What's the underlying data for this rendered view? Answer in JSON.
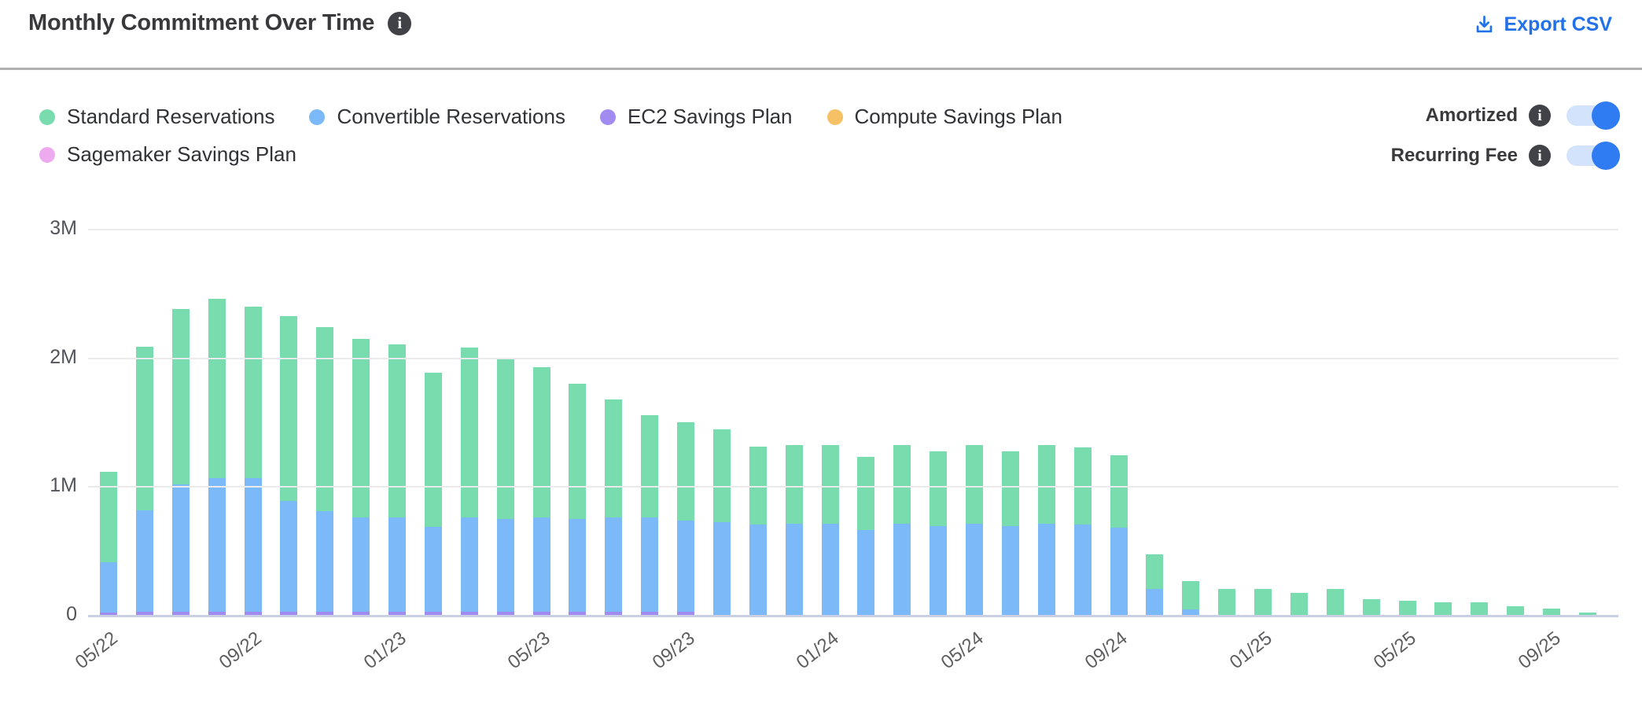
{
  "header": {
    "title": "Monthly Commitment Over Time",
    "title_info_icon": "info-icon",
    "export_label": "Export CSV"
  },
  "controls": {
    "amortized_label": "Amortized",
    "amortized_on": true,
    "recurring_fee_label": "Recurring Fee",
    "recurring_fee_on": true
  },
  "colors": {
    "accent_blue": "#2271e9",
    "toggle_track": "#d3e3fc",
    "toggle_knob": "#2e7bf2",
    "info_badge": "#414247",
    "gridline": "#eaeaea",
    "axis_line": "#c9cfe4",
    "standard": "#78dcae",
    "convertible": "#7cb9f8",
    "ec2_sp": "#a18bf0",
    "compute_sp": "#f6c065",
    "sagemaker_sp": "#eeaaee"
  },
  "chart_data": {
    "type": "bar",
    "stacked": true,
    "value_unit": "millions",
    "ylim": [
      0,
      3000000
    ],
    "y_ticks": [
      "3M",
      "2M",
      "1M",
      "0"
    ],
    "y_tick_values": [
      3000000,
      2000000,
      1000000,
      0
    ],
    "grid": true,
    "legend_position": "top-left",
    "x_tick_labels_shown": [
      "05/22",
      "09/22",
      "01/23",
      "05/23",
      "09/23",
      "01/24",
      "05/24",
      "09/24",
      "01/25",
      "05/25",
      "09/25"
    ],
    "x": [
      "05/22",
      "06/22",
      "07/22",
      "08/22",
      "09/22",
      "10/22",
      "11/22",
      "12/22",
      "01/23",
      "02/23",
      "03/23",
      "04/23",
      "05/23",
      "06/23",
      "07/23",
      "08/23",
      "09/23",
      "10/23",
      "11/23",
      "12/23",
      "01/24",
      "02/24",
      "03/24",
      "04/24",
      "05/24",
      "06/24",
      "07/24",
      "08/24",
      "09/24",
      "10/24",
      "11/24",
      "12/24",
      "01/25",
      "02/25",
      "03/25",
      "04/25",
      "05/25",
      "06/25",
      "07/25",
      "08/25",
      "09/25",
      "10/25"
    ],
    "stack_order_bottom_to_top": [
      "EC2 Savings Plan",
      "Convertible Reservations",
      "Standard Reservations"
    ],
    "series": [
      {
        "name": "Standard Reservations",
        "color": "#78dcae",
        "values": [
          0.7,
          1.27,
          1.36,
          1.39,
          1.33,
          1.44,
          1.43,
          1.39,
          1.35,
          1.2,
          1.32,
          1.25,
          1.17,
          1.05,
          0.92,
          0.8,
          0.76,
          0.72,
          0.61,
          0.61,
          0.61,
          0.57,
          0.61,
          0.58,
          0.61,
          0.58,
          0.61,
          0.6,
          0.56,
          0.27,
          0.22,
          0.2,
          0.2,
          0.17,
          0.2,
          0.12,
          0.11,
          0.1,
          0.1,
          0.07,
          0.05,
          0.02
        ]
      },
      {
        "name": "Convertible Reservations",
        "color": "#7cb9f8",
        "values": [
          0.39,
          0.79,
          0.99,
          1.04,
          1.04,
          0.86,
          0.78,
          0.73,
          0.73,
          0.66,
          0.73,
          0.72,
          0.73,
          0.72,
          0.73,
          0.73,
          0.71,
          0.72,
          0.7,
          0.71,
          0.71,
          0.66,
          0.71,
          0.69,
          0.71,
          0.69,
          0.71,
          0.7,
          0.68,
          0.2,
          0.04,
          0,
          0,
          0,
          0,
          0,
          0,
          0,
          0,
          0,
          0,
          0
        ]
      },
      {
        "name": "EC2 Savings Plan",
        "color": "#a18bf0",
        "values": [
          0.02,
          0.025,
          0.025,
          0.025,
          0.025,
          0.025,
          0.025,
          0.025,
          0.025,
          0.025,
          0.025,
          0.025,
          0.025,
          0.025,
          0.025,
          0.025,
          0.025,
          0,
          0,
          0,
          0,
          0,
          0,
          0,
          0,
          0,
          0,
          0,
          0,
          0,
          0,
          0,
          0,
          0,
          0,
          0,
          0,
          0,
          0,
          0,
          0,
          0
        ]
      },
      {
        "name": "Compute Savings Plan",
        "color": "#f6c065",
        "values": [
          0,
          0,
          0,
          0,
          0,
          0,
          0,
          0,
          0,
          0,
          0,
          0,
          0,
          0,
          0,
          0,
          0,
          0,
          0,
          0,
          0,
          0,
          0,
          0,
          0,
          0,
          0,
          0,
          0,
          0,
          0,
          0,
          0,
          0,
          0,
          0,
          0,
          0,
          0,
          0,
          0,
          0
        ]
      },
      {
        "name": "Sagemaker Savings Plan",
        "color": "#eeaaee",
        "values": [
          0,
          0,
          0,
          0,
          0,
          0,
          0,
          0,
          0,
          0,
          0,
          0,
          0,
          0,
          0,
          0,
          0,
          0,
          0,
          0,
          0,
          0,
          0,
          0,
          0,
          0,
          0,
          0,
          0,
          0,
          0,
          0,
          0,
          0,
          0,
          0,
          0,
          0,
          0,
          0,
          0,
          0
        ]
      }
    ],
    "legend_rows": [
      [
        "Standard Reservations",
        "Convertible Reservations",
        "EC2 Savings Plan",
        "Compute Savings Plan"
      ],
      [
        "Sagemaker Savings Plan"
      ]
    ]
  }
}
